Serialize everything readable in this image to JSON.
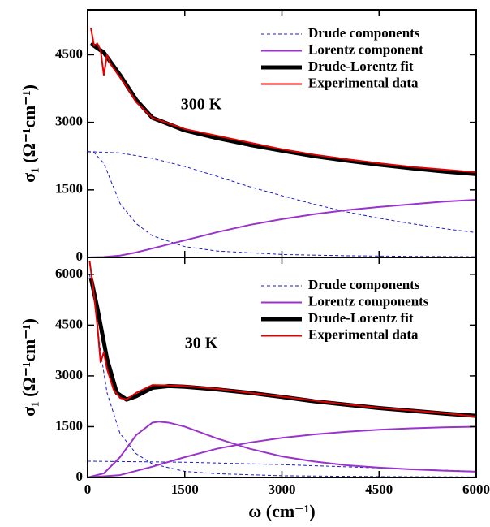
{
  "chart_data": [
    {
      "type": "line",
      "annotation": "300 K",
      "ylabel": "σ₁ (Ω⁻¹cm⁻¹)",
      "xlim": [
        0,
        6000
      ],
      "ylim": [
        0,
        5500
      ],
      "yticks": [
        0,
        1500,
        3000,
        4500
      ],
      "series": [
        {
          "name": "Drude components",
          "color": "#1a1acc",
          "style": "dashed",
          "x": [
            0,
            100,
            250,
            500,
            750,
            1000,
            1500,
            2000,
            3000,
            4000,
            5000,
            6000
          ],
          "values": [
            2350,
            2330,
            2090,
            1200,
            750,
            480,
            240,
            141,
            65,
            37,
            24,
            16
          ]
        },
        {
          "color": "#1a1acc",
          "style": "dashed",
          "x": [
            0,
            500,
            1000,
            1500,
            2000,
            2500,
            3000,
            3500,
            4000,
            4500,
            5000,
            5500,
            6000
          ],
          "values": [
            2350,
            2320,
            2200,
            2020,
            1800,
            1570,
            1370,
            1180,
            1010,
            870,
            750,
            640,
            550
          ]
        },
        {
          "name": "Lorentz component",
          "color": "#9933cc",
          "style": "solid",
          "x": [
            0,
            250,
            500,
            750,
            1000,
            1500,
            2000,
            2500,
            3000,
            3500,
            4000,
            4500,
            5000,
            5500,
            6000
          ],
          "values": [
            0,
            10,
            40,
            110,
            200,
            380,
            560,
            720,
            850,
            960,
            1050,
            1120,
            1180,
            1240,
            1280
          ]
        },
        {
          "name": "Drude-Lorentz fit",
          "color": "#000000",
          "style": "thick",
          "x": [
            50,
            250,
            500,
            750,
            1000,
            1500,
            2000,
            2500,
            3000,
            3500,
            4000,
            4500,
            5000,
            5500,
            6000
          ],
          "values": [
            4750,
            4550,
            4050,
            3500,
            3100,
            2820,
            2650,
            2500,
            2370,
            2250,
            2150,
            2060,
            1980,
            1910,
            1850
          ]
        },
        {
          "name": "Experimental data",
          "color": "#e00000",
          "style": "solid",
          "x": [
            50,
            100,
            150,
            200,
            250,
            300,
            350,
            400,
            500,
            600,
            750,
            1000,
            1500,
            2000,
            2500,
            3000,
            3500,
            4000,
            4500,
            5000,
            5500,
            6000
          ],
          "values": [
            5100,
            4700,
            4750,
            4600,
            4050,
            4500,
            4300,
            4200,
            4000,
            3800,
            3450,
            3100,
            2850,
            2700,
            2550,
            2400,
            2280,
            2180,
            2090,
            2010,
            1950,
            1890
          ]
        }
      ]
    },
    {
      "type": "line",
      "annotation": "30 K",
      "ylabel": "σ₁ (Ω⁻¹cm⁻¹)",
      "xlabel": "ω (cm⁻¹)",
      "xlim": [
        0,
        6000
      ],
      "ylim": [
        0,
        6500
      ],
      "xticks": [
        0,
        1500,
        3000,
        4500,
        6000
      ],
      "yticks": [
        0,
        1500,
        3000,
        4500,
        6000
      ],
      "series": [
        {
          "name": "Drude components",
          "color": "#1a1acc",
          "style": "dashed",
          "x": [
            30,
            100,
            200,
            300,
            500,
            750,
            1000,
            1500,
            2000,
            3000,
            4500,
            6000
          ],
          "values": [
            6000,
            5300,
            3700,
            2500,
            1300,
            700,
            400,
            180,
            110,
            50,
            25,
            15
          ]
        },
        {
          "color": "#1a1acc",
          "style": "dashed",
          "x": [
            0,
            1500,
            3000,
            4500,
            6000
          ],
          "values": [
            480,
            450,
            380,
            280,
            180
          ]
        },
        {
          "name": "Lorentz components",
          "color": "#9933cc",
          "style": "solid",
          "x": [
            0,
            250,
            500,
            750,
            1000,
            1100,
            1250,
            1500,
            2000,
            2500,
            3000,
            3500,
            4000,
            4500,
            5000,
            5500,
            6000
          ],
          "values": [
            0,
            120,
            600,
            1250,
            1620,
            1650,
            1620,
            1500,
            1150,
            850,
            620,
            470,
            360,
            290,
            240,
            200,
            170
          ]
        },
        {
          "color": "#9933cc",
          "style": "solid",
          "x": [
            0,
            500,
            1000,
            1500,
            2000,
            2500,
            3000,
            3500,
            4000,
            4500,
            5000,
            5500,
            6000
          ],
          "values": [
            0,
            70,
            320,
            600,
            850,
            1030,
            1170,
            1270,
            1350,
            1410,
            1450,
            1480,
            1500
          ]
        },
        {
          "name": "Drude-Lorentz fit",
          "color": "#000000",
          "style": "thick",
          "x": [
            50,
            150,
            300,
            450,
            600,
            750,
            1000,
            1250,
            1500,
            2000,
            2500,
            3000,
            3500,
            4000,
            4500,
            5000,
            5500,
            6000
          ],
          "values": [
            5900,
            5000,
            3500,
            2500,
            2300,
            2400,
            2650,
            2700,
            2680,
            2600,
            2500,
            2380,
            2250,
            2150,
            2050,
            1970,
            1890,
            1820
          ]
        },
        {
          "name": "Experimental data",
          "color": "#e00000",
          "style": "solid",
          "x": [
            30,
            80,
            150,
            200,
            250,
            300,
            400,
            500,
            600,
            750,
            1000,
            1250,
            1500,
            2000,
            2500,
            3000,
            3500,
            4000,
            4500,
            5000,
            5500,
            6000
          ],
          "values": [
            6400,
            5700,
            4500,
            3400,
            3700,
            3200,
            2600,
            2350,
            2300,
            2500,
            2730,
            2720,
            2700,
            2620,
            2500,
            2390,
            2270,
            2160,
            2060,
            1980,
            1900,
            1800
          ]
        }
      ]
    }
  ]
}
